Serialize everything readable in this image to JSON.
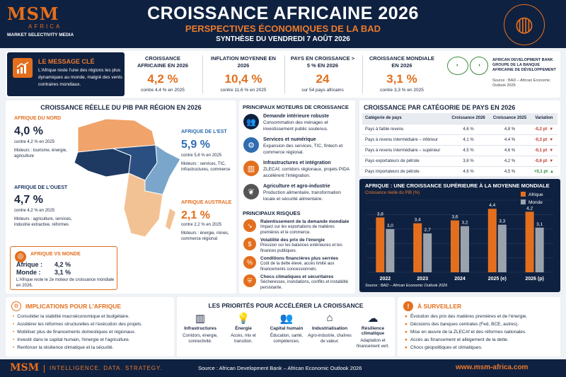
{
  "header": {
    "logo": "MSM",
    "logo_sub": "AFRICA",
    "logo_tag": "MARKET SELECTIVITY MEDIA",
    "title": "CROISSANCE AFRICAINE 2026",
    "subtitle": "PERSPECTIVES ÉCONOMIQUES DE LA BAD",
    "date": "SYNTHÈSE DU VENDREDI 7 AOÛT 2026"
  },
  "message": {
    "title": "LE MESSAGE CLÉ",
    "body": "L'Afrique reste l'une des régions les plus dynamiques au monde, malgré des vents contraires mondiaux."
  },
  "kpis": [
    {
      "label": "CROISSANCE AFRICAINE EN 2026",
      "value": "4,2 %",
      "sub": "contre 4,4 % en 2025"
    },
    {
      "label": "INFLATION MOYENNE EN 2026",
      "value": "10,4 %",
      "sub": "contre 11,6 % en 2025"
    },
    {
      "label": "PAYS EN CROISSANCE > 5 % EN 2026",
      "value": "24",
      "sub": "sur 54 pays africains"
    },
    {
      "label": "CROISSANCE MONDIALE EN 2026",
      "value": "3,1 %",
      "sub": "contre 3,3 % en 2025"
    }
  ],
  "bad": {
    "name": "AFRICAN DEVELOPMENT BANK GROUPE DE LA BANQUE AFRICAINE DE DÉVELOPPEMENT",
    "source": "Source : BAD – African Economic Outlook 2026"
  },
  "regions": {
    "title": "CROISSANCE RÉELLE DU PIB PAR RÉGION EN 2026",
    "nord": {
      "name": "AFRIQUE DU NORD",
      "value": "4,0 %",
      "vs": "contre 4,2 % en 2025",
      "drivers": "Moteurs : tourisme, énergie, agriculture"
    },
    "est": {
      "name": "AFRIQUE DE L'EST",
      "value": "5,9 %",
      "vs": "contre 5,6 % en 2025",
      "drivers": "Moteurs : services, TIC, infrastructures, commerce"
    },
    "ouest": {
      "name": "AFRIQUE DE L'OUEST",
      "value": "4,7 %",
      "vs": "contre 4,2 % en 2025",
      "drivers": "Moteurs : agriculture, services, industrie extractive, réformes"
    },
    "australe": {
      "name": "AFRIQUE AUSTRALE",
      "value": "2,1 %",
      "vs": "contre 2,2 % en 2025",
      "drivers": "Moteurs : énergie, mines, commerce régional"
    }
  },
  "vs_monde": {
    "title": "AFRIQUE VS MONDE",
    "afrique_label": "Afrique :",
    "afrique_value": "4,2 %",
    "monde_label": "Monde :",
    "monde_value": "3,1 %",
    "note": "L'Afrique reste le 2e moteur de croissance mondiale en 2026."
  },
  "drivers": {
    "title": "PRINCIPAUX MOTEURS DE CROISSANCE",
    "items": [
      {
        "title": "Demande intérieure robuste",
        "body": "Consommation des ménages et investissement public soutenus.",
        "icon": "people-icon",
        "color": "#0f2140"
      },
      {
        "title": "Services et numérique",
        "body": "Expansion des services, TIC, fintech et commerce régional.",
        "icon": "gear-icon",
        "color": "#2f6db0"
      },
      {
        "title": "Infrastructures et intégration",
        "body": "ZLECAf, corridors régionaux, projets PIDA accélèrent l'intégration.",
        "icon": "road-icon",
        "color": "#e36f1e"
      },
      {
        "title": "Agriculture et agro-industrie",
        "body": "Production alimentaire, transformation locale et sécurité alimentaire.",
        "icon": "leaf-icon",
        "color": "#555555"
      }
    ]
  },
  "risks": {
    "title": "PRINCIPAUX RISQUES",
    "items": [
      {
        "title": "Ralentissement de la demande mondiale",
        "body": "Impact sur les exportations de matières premières et le commerce.",
        "icon": "down-trend-icon"
      },
      {
        "title": "Volatilité des prix de l'énergie",
        "body": "Pression sur les balances extérieures et les finances publiques.",
        "icon": "dollar-icon"
      },
      {
        "title": "Conditions financières plus serrées",
        "body": "Coût de la dette élevé, accès limité aux financements concessionnels.",
        "icon": "percent-icon"
      },
      {
        "title": "Chocs climatiques et sécuritaires",
        "body": "Sécheresses, inondations, conflits et instabilité persistante.",
        "icon": "shield-icon"
      }
    ]
  },
  "country_table": {
    "title": "CROISSANCE PAR CATÉGORIE DE PAYS EN 2026",
    "headers": [
      "Catégorie de pays",
      "Croissance 2026",
      "Croissance 2025",
      "Variation"
    ],
    "rows": [
      {
        "cat": "Pays à faible revenu",
        "g26": "4,6 %",
        "g25": "4,8 %",
        "var": "-0,2 pt",
        "dir": "down"
      },
      {
        "cat": "Pays à revenu intermédiaire – inférieur",
        "g26": "4,1 %",
        "g25": "4,4 %",
        "var": "-0,3 pt",
        "dir": "down"
      },
      {
        "cat": "Pays à revenu intermédiaire – supérieur",
        "g26": "4,5 %",
        "g25": "4,6 %",
        "var": "-0,1 pt",
        "dir": "down"
      },
      {
        "cat": "Pays exportateurs de pétrole",
        "g26": "3,6 %",
        "g25": "4,2 %",
        "var": "-0,6 pt",
        "dir": "down"
      },
      {
        "cat": "Pays importateurs de pétrole",
        "g26": "4,6 %",
        "g25": "4,5 %",
        "var": "+0,1 pt",
        "dir": "up"
      }
    ]
  },
  "chart_data": {
    "type": "bar",
    "title": "AFRIQUE : UNE CROISSANCE SUPÉRIEURE À LA MOYENNE MONDIALE",
    "subtitle": "Croissance réelle du PIB (%)",
    "categories": [
      "2022",
      "2023",
      "2024",
      "2025 (e)",
      "2026 (p)"
    ],
    "series": [
      {
        "name": "Afrique",
        "values": [
          3.8,
          3.4,
          3.6,
          4.4,
          4.2
        ],
        "labels": [
          "3,8",
          "3,4",
          "3,6",
          "4,4",
          "4,2"
        ],
        "color": "#e36f1e"
      },
      {
        "name": "Monde",
        "values": [
          3.0,
          2.7,
          3.2,
          3.3,
          3.1
        ],
        "labels": [
          "3,0",
          "2,7",
          "3,2",
          "3,3",
          "3,1"
        ],
        "color": "#9aa3ad"
      }
    ],
    "ylim": [
      0,
      5
    ],
    "legend": "top-right",
    "grid": true,
    "source": "Source : BAD – African Economic Outlook 2026"
  },
  "implications": {
    "title": "IMPLICATIONS POUR L'AFRIQUE",
    "items": [
      "Consolider la stabilité macroéconomique et budgétaire.",
      "Accélérer les réformes structurelles et l'exécution des projets.",
      "Mobiliser plus de financements domestiques et régionaux.",
      "Investir dans le capital humain, l'énergie et l'agriculture.",
      "Renforcer la résilience climatique et la sécurité."
    ]
  },
  "priorities": {
    "title": "LES PRIORITÉS POUR ACCÉLÉRER LA CROISSANCE",
    "items": [
      {
        "title": "Infrastructures",
        "body": "Corridors, énergie, connectivité.",
        "icon": "road-icon"
      },
      {
        "title": "Énergie",
        "body": "Accès, mix et transition.",
        "icon": "bulb-icon"
      },
      {
        "title": "Capital humain",
        "body": "Éducation, santé, compétences.",
        "icon": "people-icon"
      },
      {
        "title": "Industrialisation",
        "body": "Agro-industrie, chaînes de valeur.",
        "icon": "factory-icon"
      },
      {
        "title": "Résilience climatique",
        "body": "Adaptation et financement vert.",
        "icon": "cloud-icon"
      }
    ]
  },
  "watch": {
    "title": "À SURVEILLER",
    "items": [
      "Évolution des prix des matières premières et de l'énergie.",
      "Décisions des banques centrales (Fed, BCE, autres).",
      "Mise en œuvre de la ZLECAf et des réformes nationales.",
      "Accès au financement et allègement de la dette.",
      "Chocs géopolitiques et climatiques."
    ]
  },
  "footer": {
    "logo": "MSM",
    "tagline": "INTELLIGENCE. DATA. STRATEGY.",
    "source": "Source : African Development Bank – African Economic Outlook 2026",
    "url": "www.msm-africa.com"
  }
}
